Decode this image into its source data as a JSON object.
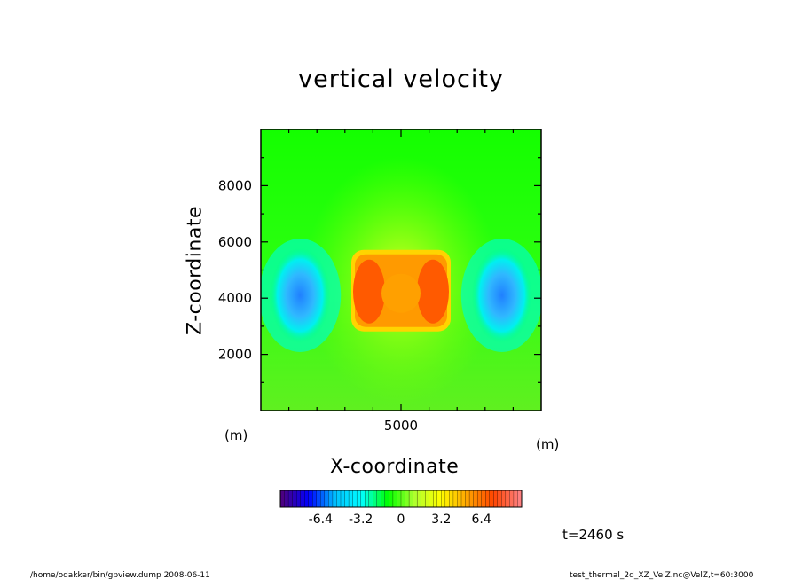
{
  "chart_data": {
    "type": "heatmap",
    "title": "vertical velocity",
    "xlabel": "X-coordinate",
    "ylabel": "Z-coordinate",
    "x_unit": "(m)",
    "y_unit": "(m)",
    "xlim": [
      0,
      10000
    ],
    "ylim": [
      0,
      10000
    ],
    "x_ticks": [
      "5000"
    ],
    "y_ticks": [
      "2000",
      "4000",
      "6000",
      "8000"
    ],
    "colorbar": {
      "range": [
        -9.6,
        9.6
      ],
      "tick_labels": [
        "-6.4",
        "-3.2",
        "0",
        "3.2",
        "6.4"
      ],
      "tick_values": [
        -6.4,
        -3.2,
        0,
        3.2,
        6.4
      ]
    },
    "features": [
      {
        "name": "updraft core",
        "x": 5000,
        "z": 4300,
        "value": 7.5
      },
      {
        "name": "downdraft left",
        "x": 1400,
        "z": 4100,
        "value": -5.5
      },
      {
        "name": "downdraft right",
        "x": 8600,
        "z": 4100,
        "value": -5.5
      }
    ]
  },
  "annotations": {
    "time": "t=2460 s",
    "footer_left": "/home/odakker/bin/gpview.dump  2008-06-11",
    "footer_right": "test_thermal_2d_XZ_VelZ.nc@VelZ,t=60:3000"
  },
  "colors": {
    "colormap": [
      "#4b0082",
      "#0000ff",
      "#00bfff",
      "#00ffff",
      "#00ff00",
      "#adff2f",
      "#ffff00",
      "#ffa500",
      "#ff4500",
      "#ff8080"
    ]
  }
}
